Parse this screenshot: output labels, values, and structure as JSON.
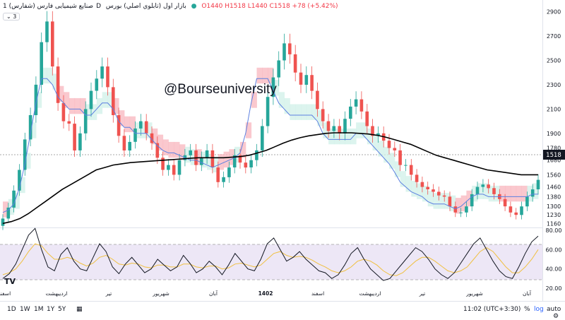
{
  "header": {
    "symbol": "صنایع شیمیایی فارس (شفارس)",
    "interval": "1D",
    "exchange": "بازار اول (تابلوي اصلي) بورس",
    "ohlc": "O1440 H1518 L1440 C1518 +78 (+5.42%)",
    "indicator_badge": "3"
  },
  "watermark": "@Bourseuniversity",
  "price_axis": {
    "ticks": [
      "2900",
      "2700",
      "2500",
      "2300",
      "2100",
      "1900",
      "1780",
      "1680",
      "1560",
      "1460",
      "1380",
      "1300",
      "1230",
      "1160"
    ],
    "last_price": "1518"
  },
  "osc_axis": {
    "ticks": [
      "80.00",
      "60.00",
      "40.00",
      "20.00"
    ]
  },
  "time_axis": {
    "labels": [
      "اسفند",
      "اردیبهشت",
      "تیر",
      "شهریور",
      "آبان",
      "1402",
      "اسفند",
      "اردیبهشت",
      "تیر",
      "شهریور",
      "آبان"
    ]
  },
  "bottom_bar": {
    "timeframes": [
      "1D",
      "1W",
      "1M",
      "1Y",
      "5Y"
    ],
    "clock": "11:02 (UTC+3:30)",
    "percent": "%",
    "log": "log",
    "auto": "auto"
  },
  "colors": {
    "up": "#26a69a",
    "down": "#ef5350",
    "cloud_bear": "#f8b5bd",
    "cloud_bull": "#d0f0e8",
    "kijun": "#5b7fe0",
    "ma": "#000000",
    "rsi": "#131722",
    "rsi_ma": "#f0c040",
    "rsi_band": "#ede7f6"
  },
  "chart_data": [
    {
      "type": "candlestick",
      "title": "صنایع شیمیایی فارس (شفارس)",
      "ylim": [
        1150,
        2950
      ],
      "series": [
        {
          "name": "price_close",
          "values": [
            1200,
            1290,
            1430,
            1600,
            1850,
            2050,
            2300,
            2650,
            2820,
            2450,
            2150,
            2000,
            1980,
            1760,
            1900,
            2100,
            2250,
            2350,
            2450,
            2280,
            2050,
            1880,
            1760,
            1830,
            1940,
            2000,
            1900,
            1820,
            1700,
            1600,
            1640,
            1560,
            1680,
            1720,
            1760,
            1640,
            1700,
            1760,
            1620,
            1500,
            1540,
            1620,
            1720,
            1660,
            1620,
            1680,
            1760,
            1960,
            2200,
            2360,
            2500,
            2640,
            2550,
            2400,
            2300,
            2380,
            2250,
            2100,
            2000,
            1920,
            1960,
            1900,
            2020,
            2120,
            2180,
            2080,
            1960,
            1880,
            1900,
            1840,
            1780,
            1760,
            1640,
            1640,
            1560,
            1500,
            1460,
            1440,
            1420,
            1390,
            1380,
            1300,
            1250,
            1250,
            1300,
            1400,
            1460,
            1480,
            1450,
            1400,
            1360,
            1300,
            1250,
            1230,
            1300,
            1380,
            1440,
            1518
          ]
        },
        {
          "name": "kijun",
          "values": [
            1250,
            1270,
            1320,
            1450,
            1650,
            1900,
            2150,
            2350,
            2350,
            2300,
            2200,
            2150,
            2100,
            2100,
            2100,
            2050,
            2050,
            2100,
            2150,
            2150,
            2100,
            2000,
            1950,
            1950,
            1900,
            1900,
            1900,
            1850,
            1800,
            1760,
            1740,
            1740,
            1720,
            1700,
            1680,
            1680,
            1660,
            1640,
            1620,
            1640,
            1660,
            1680,
            1700,
            1740,
            1900,
            2150,
            2350,
            2350,
            2350,
            2250,
            2150,
            2100,
            2050,
            2050,
            2050,
            2050,
            2050,
            2000,
            1900,
            1850,
            1850,
            1850,
            1850,
            1850,
            1900,
            1900,
            1850,
            1800,
            1750,
            1700,
            1650,
            1580,
            1500,
            1460,
            1420,
            1400,
            1380,
            1340,
            1320,
            1320,
            1320,
            1300,
            1280,
            1300,
            1340,
            1380,
            1400,
            1400,
            1380,
            1380,
            1380,
            1380,
            1380,
            1380,
            1380,
            1380,
            1400,
            1400
          ]
        },
        {
          "name": "ma",
          "values": [
            1160,
            1175,
            1200,
            1240,
            1290,
            1340,
            1390,
            1440,
            1480,
            1520,
            1560,
            1600,
            1620,
            1640,
            1650,
            1660,
            1665,
            1670,
            1675,
            1680,
            1685,
            1690,
            1695,
            1700,
            1700,
            1700,
            1700,
            1705,
            1710,
            1720,
            1740,
            1760,
            1790,
            1820,
            1845,
            1865,
            1880,
            1890,
            1900,
            1905,
            1905,
            1905,
            1900,
            1895,
            1885,
            1870,
            1850,
            1830,
            1810,
            1780,
            1750,
            1720,
            1700,
            1680,
            1660,
            1640,
            1620,
            1600,
            1590,
            1580,
            1570,
            1560,
            1560,
            1560
          ]
        }
      ]
    },
    {
      "type": "line",
      "title": "RSI",
      "ylim": [
        20,
        80
      ],
      "series": [
        {
          "name": "rsi",
          "values": [
            30,
            35,
            45,
            60,
            75,
            82,
            60,
            42,
            38,
            55,
            62,
            48,
            40,
            38,
            52,
            66,
            58,
            42,
            35,
            45,
            52,
            44,
            36,
            40,
            50,
            44,
            38,
            42,
            54,
            46,
            36,
            40,
            48,
            42,
            34,
            44,
            56,
            48,
            40,
            38,
            50,
            66,
            72,
            60,
            48,
            52,
            58,
            50,
            44,
            38,
            36,
            30,
            34,
            44,
            56,
            62,
            50,
            40,
            34,
            28,
            30,
            38,
            46,
            54,
            62,
            58,
            50,
            40,
            34,
            30,
            36,
            46,
            56,
            66,
            72,
            60,
            48,
            38,
            32,
            30,
            42,
            56,
            68,
            74
          ]
        },
        {
          "name": "rsi_ma",
          "values": [
            34,
            36,
            40,
            48,
            58,
            66,
            64,
            56,
            50,
            50,
            52,
            50,
            46,
            43,
            46,
            52,
            54,
            50,
            45,
            44,
            46,
            45,
            42,
            41,
            44,
            44,
            42,
            42,
            45,
            45,
            42,
            41,
            43,
            43,
            40,
            41,
            45,
            46,
            44,
            42,
            44,
            50,
            56,
            58,
            54,
            52,
            53,
            52,
            49,
            45,
            42,
            38,
            36,
            38,
            42,
            48,
            50,
            48,
            44,
            38,
            34,
            33,
            36,
            42,
            48,
            52,
            52,
            48,
            43,
            38,
            36,
            38,
            42,
            50,
            58,
            62,
            58,
            50,
            42,
            36,
            36,
            42,
            50,
            60
          ]
        }
      ]
    }
  ]
}
